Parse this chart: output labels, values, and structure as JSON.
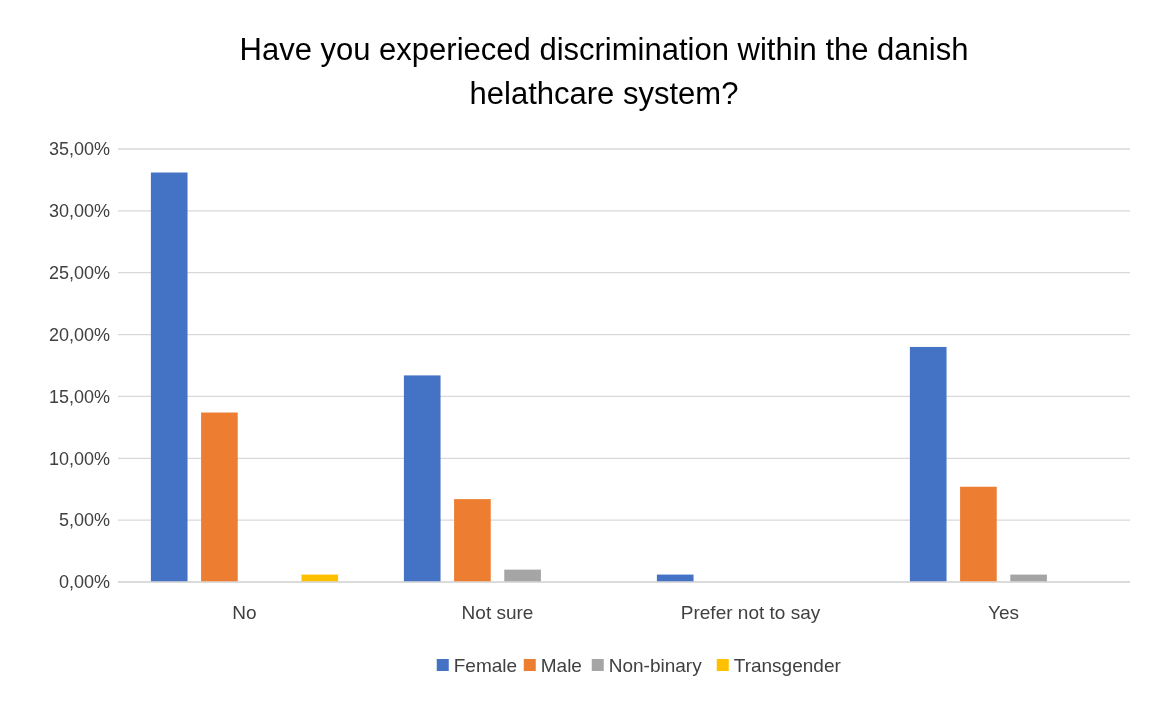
{
  "chart_data": {
    "type": "bar",
    "title": "Have you experieced discrimination within the danish helathcare system?",
    "categories": [
      "No",
      "Not sure",
      "Prefer not to say",
      "Yes"
    ],
    "series": [
      {
        "name": "Female",
        "color": "#4472c4",
        "values": [
          33.1,
          16.7,
          0.6,
          19.0
        ]
      },
      {
        "name": "Male",
        "color": "#ed7d31",
        "values": [
          13.7,
          6.7,
          0,
          7.7
        ]
      },
      {
        "name": "Non-binary",
        "color": "#a5a5a5",
        "values": [
          0,
          1.0,
          0,
          0.6
        ]
      },
      {
        "name": "Transgender",
        "color": "#ffc000",
        "values": [
          0.6,
          0,
          0,
          0
        ]
      }
    ],
    "ylim": [
      0,
      35
    ],
    "yticks": [
      {
        "value": 0,
        "label": "0,00%"
      },
      {
        "value": 5,
        "label": "5,00%"
      },
      {
        "value": 10,
        "label": "10,00%"
      },
      {
        "value": 15,
        "label": "15,00%"
      },
      {
        "value": 20,
        "label": "20,00%"
      },
      {
        "value": 25,
        "label": "25,00%"
      },
      {
        "value": 30,
        "label": "30,00%"
      },
      {
        "value": 35,
        "label": "35,00%"
      }
    ],
    "grid": "y",
    "legend": "bottom"
  }
}
